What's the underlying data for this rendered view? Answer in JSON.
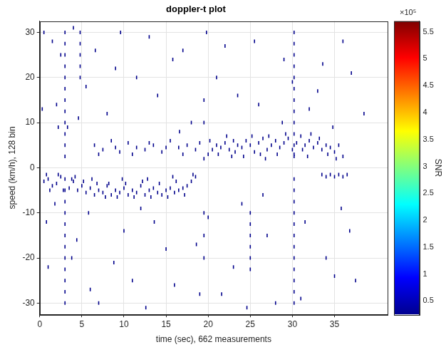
{
  "chart_data": {
    "type": "scatter",
    "title": "doppler-t plot",
    "x_label": "time (sec), 662 measurements",
    "y_label": "speed (km/h), 128 bin",
    "xlim": [
      0,
      41.3
    ],
    "ylim": [
      -32.5,
      32.5
    ],
    "xticks": [
      0,
      5,
      10,
      15,
      20,
      25,
      30,
      35
    ],
    "yticks": [
      -30,
      -20,
      -10,
      0,
      10,
      20,
      30
    ],
    "grid": true,
    "marker": "dash",
    "color": "#00008b",
    "x": [
      0.5,
      1,
      1.5,
      2,
      2.5,
      3.5,
      4,
      4.5,
      5,
      5.5,
      6,
      6.5,
      7,
      7.5,
      8,
      8.5,
      9,
      9.5,
      10,
      10.5,
      11,
      11.5,
      12,
      12.5,
      13,
      13.5,
      14,
      14.5,
      15,
      15.5,
      16,
      16.5,
      17,
      17.5,
      18,
      18.5,
      1.2,
      2.8,
      5.2,
      6.8,
      7.8,
      8.2,
      9.2,
      10.2,
      11.2,
      12.2,
      13.2,
      14.2,
      15.2,
      16.2,
      17.2,
      0.8,
      2.2,
      3.8,
      4.2,
      6.2,
      9.8,
      12.8,
      15.8,
      18.2,
      6.5,
      7.5,
      8.5,
      9.5,
      10.5,
      11.5,
      12.5,
      13.5,
      14.5,
      15.5,
      16.5,
      17.5,
      18.5,
      7,
      9,
      11,
      13,
      15,
      17,
      19,
      19.5,
      20,
      20.5,
      21,
      21.5,
      22,
      22.5,
      23,
      23.5,
      24,
      24.5,
      25,
      25.5,
      26,
      26.5,
      27,
      27.5,
      28,
      28.5,
      29,
      29.5,
      30,
      30.5,
      31,
      31.5,
      32,
      32.5,
      33,
      33.5,
      34,
      34.5,
      35,
      35.5,
      36,
      20.2,
      21.2,
      22.2,
      23.2,
      24.2,
      25.2,
      26.2,
      27.2,
      28.2,
      29.2,
      30.2,
      31.2,
      32.2,
      33.2,
      34.2,
      35.2,
      33.5,
      34,
      34.5,
      35,
      35.5,
      36,
      36.5,
      22.8,
      26.8,
      31.8,
      3,
      3,
      3,
      3,
      3,
      3,
      3,
      3,
      3,
      3,
      3,
      3,
      3,
      3,
      3,
      3,
      3,
      3,
      3,
      3,
      3,
      3,
      3,
      3,
      30.2,
      30.2,
      30.2,
      30.2,
      30.2,
      30.2,
      30.2,
      30.2,
      30.2,
      30.2,
      30.2,
      30.2,
      30.2,
      30.2,
      30.2,
      30.2,
      30.2,
      30.2,
      30.2,
      30.2,
      30.2,
      30.2,
      30.2,
      30.2,
      4.8,
      4.8,
      4.8,
      4.8,
      4.8,
      19.5,
      19.5,
      19.5,
      19.5,
      19.5,
      25,
      25,
      25,
      25,
      25,
      25,
      0.5,
      1.5,
      2.5,
      4,
      5.5,
      7,
      9,
      11,
      13,
      15,
      17,
      19,
      21,
      23,
      25.5,
      27,
      29,
      31,
      33,
      35,
      37,
      0.8,
      2,
      3.8,
      6,
      8,
      10,
      12,
      14,
      16,
      18,
      20,
      22,
      24,
      26,
      28,
      30,
      32,
      34,
      36,
      1,
      2.2,
      4.4,
      6.6,
      8.8,
      11.5,
      13.6,
      15.8,
      18.6,
      21.6,
      23.5,
      26.5,
      28.8,
      31.5,
      33.6,
      35.8,
      37.5,
      38.5,
      36.8,
      34.8,
      0.3,
      1.8,
      3.3,
      4.6,
      5.8,
      9.6,
      12.6,
      16.6,
      19.8,
      24.6
    ],
    "values": [
      -3,
      -2.5,
      -4,
      -3.5,
      -2,
      -4.5,
      -3,
      -5,
      -4,
      -5.5,
      -4.5,
      -6,
      -5,
      -5.5,
      -4,
      -6,
      -5,
      -5.5,
      -4.5,
      -6,
      -5,
      -5.5,
      -4,
      -6,
      -5,
      -4.5,
      -5.5,
      -6,
      -5,
      -4.5,
      -5.5,
      -5,
      -4.5,
      -4,
      -3,
      -2,
      -5,
      -5,
      -3,
      -3.5,
      -6.5,
      -3.5,
      -6.5,
      -3.5,
      -6.5,
      -3,
      -6.5,
      -3.5,
      -6.5,
      -3,
      -6,
      -1.5,
      -1.5,
      -2.5,
      -2,
      -2.5,
      -2.5,
      -2.5,
      -2,
      -1.5,
      5,
      4,
      6,
      3.5,
      5.5,
      4.5,
      4,
      5,
      3.5,
      6,
      4.5,
      5,
      4,
      3,
      4.5,
      3,
      5.5,
      4.5,
      3,
      5.5,
      2,
      3,
      4,
      5,
      4.5,
      5.5,
      4,
      6,
      5,
      4.5,
      6,
      5,
      3.5,
      5.5,
      6.5,
      4,
      5,
      6,
      4.5,
      5.5,
      6.5,
      4,
      5.5,
      7,
      5,
      6,
      4.5,
      5.5,
      4,
      5,
      4.5,
      3.5,
      5,
      2.5,
      6,
      3,
      7,
      3.5,
      2.5,
      7,
      3,
      7,
      3,
      7.5,
      3,
      4,
      7.5,
      6.5,
      3,
      2,
      -1.5,
      -2,
      -1.5,
      -2,
      -1.5,
      -2,
      -1.5,
      2.5,
      2,
      2.5,
      -30,
      -27.5,
      -25,
      -22.5,
      -20,
      -17.5,
      -15,
      -12.5,
      -10,
      -7.5,
      -5,
      -2.5,
      2.5,
      5,
      7.5,
      10,
      12.5,
      15,
      17.5,
      20,
      22.5,
      25,
      27.5,
      30,
      -30,
      -27.5,
      -25,
      -22.5,
      -20,
      -17.5,
      -15,
      -12.5,
      -10,
      -7.5,
      -5,
      -2.5,
      2.5,
      5,
      7.5,
      10,
      12.5,
      15,
      17.5,
      20,
      22.5,
      25,
      27.5,
      30,
      20,
      22.5,
      25,
      27.5,
      30,
      -20,
      -15,
      -10,
      10,
      15,
      -10,
      -12.5,
      -15,
      -17.5,
      -20,
      -22.5,
      30,
      28,
      25,
      31,
      18,
      -30,
      22,
      -25,
      29,
      -18,
      26,
      -28,
      20,
      -22,
      28,
      -15,
      24,
      -29,
      17,
      -24,
      21,
      -12,
      14,
      -20,
      -27,
      12,
      -14,
      -9,
      16,
      -26,
      10,
      -11,
      27,
      -8,
      14,
      -30,
      19,
      13,
      -20,
      28,
      -22,
      9,
      -16,
      26,
      -21,
      20,
      -12,
      24,
      -17,
      -28,
      16,
      -6,
      10,
      -12,
      23,
      -9,
      -25,
      12,
      -14,
      9,
      13,
      -8,
      9,
      11,
      -10,
      30,
      -31,
      8,
      30,
      -31
    ],
    "colorbar": {
      "label": "SNR",
      "multiplier": "×10⁵",
      "range": [
        25000,
        570000
      ],
      "ticks": [
        {
          "value": 50000,
          "label": "0.5"
        },
        {
          "value": 100000,
          "label": "1"
        },
        {
          "value": 150000,
          "label": "1.5"
        },
        {
          "value": 200000,
          "label": "2"
        },
        {
          "value": 250000,
          "label": "2.5"
        },
        {
          "value": 300000,
          "label": "3"
        },
        {
          "value": 350000,
          "label": "3.5"
        },
        {
          "value": 400000,
          "label": "4"
        },
        {
          "value": 450000,
          "label": "4.5"
        },
        {
          "value": 500000,
          "label": "5"
        },
        {
          "value": 550000,
          "label": "5.5"
        }
      ]
    }
  }
}
